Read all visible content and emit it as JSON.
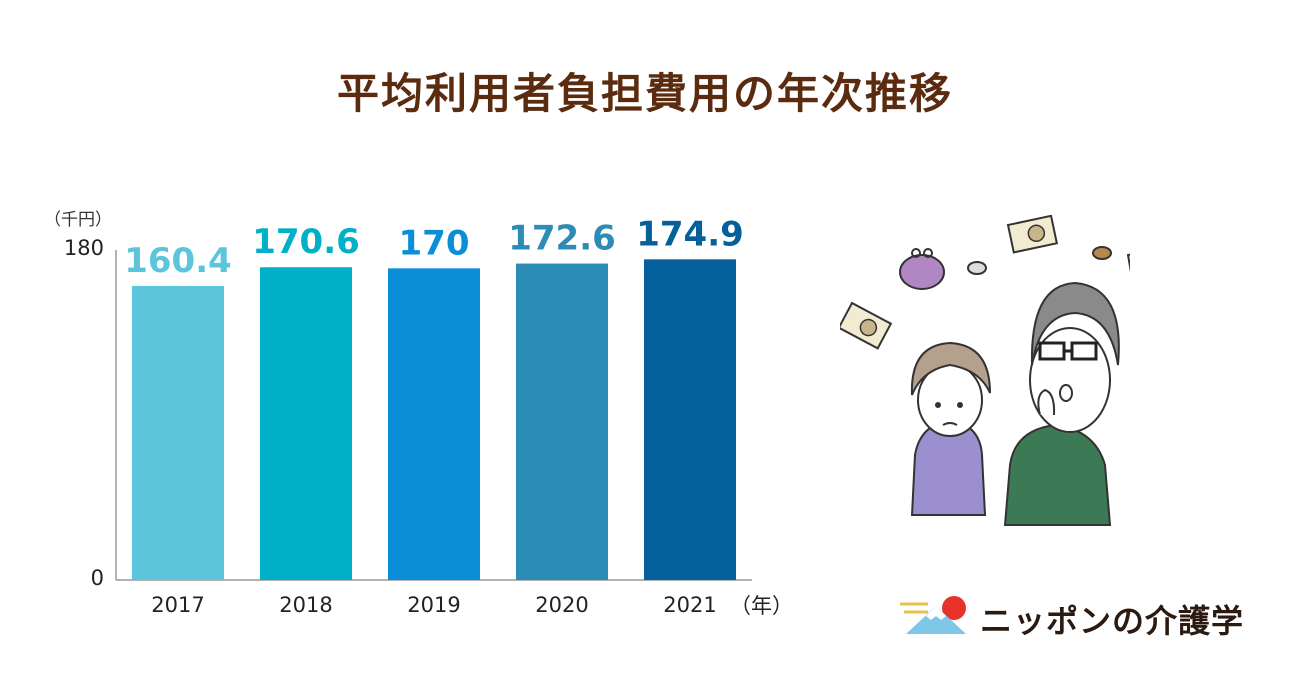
{
  "title": "平均利用者負担費用の年次推移",
  "chart_data": {
    "type": "bar",
    "categories": [
      "2017",
      "2018",
      "2019",
      "2020",
      "2021"
    ],
    "values": [
      160.4,
      170.6,
      170,
      172.6,
      174.9
    ],
    "value_labels": [
      "160.4",
      "170.6",
      "170",
      "172.6",
      "174.9"
    ],
    "colors": [
      "#5bc5dc",
      "#00b0c9",
      "#0a8ed8",
      "#2b8cb5",
      "#03609a"
    ],
    "y_unit": "（千円）",
    "x_unit": "（年）",
    "y_ticks": [
      "180",
      "0"
    ],
    "ylim": [
      0,
      180
    ],
    "grid": false,
    "legend": "none"
  },
  "brand": {
    "name": "ニッポンの介護学",
    "accent": "#e8312a"
  },
  "illustration": {
    "icon": "worried-elderly-couple-money-illustration"
  }
}
